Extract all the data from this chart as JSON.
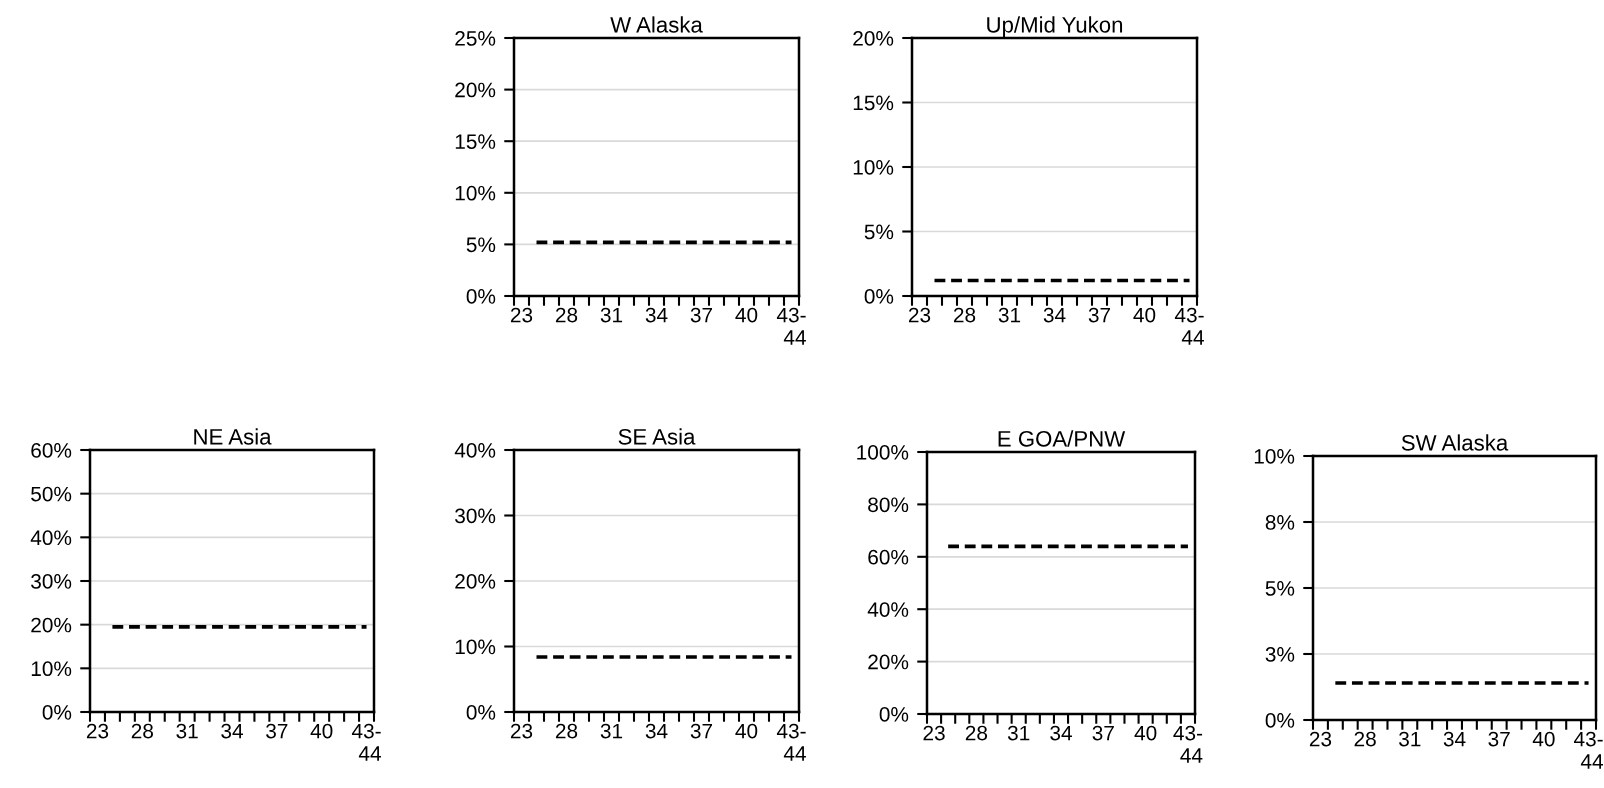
{
  "chart_data": [
    {
      "type": "line",
      "title": "W Alaska",
      "categories": [
        "23",
        null,
        null,
        "28",
        null,
        null,
        "31",
        null,
        null,
        "34",
        null,
        null,
        "37",
        null,
        null,
        "40",
        null,
        null,
        "43-44"
      ],
      "series": [
        {
          "color": "#000000",
          "values": [
            null,
            5.2,
            5.2,
            5.2,
            5.2,
            5.2,
            5.2,
            5.2,
            5.2,
            5.2,
            5.2,
            5.2,
            5.2,
            5.2,
            5.2,
            5.2,
            5.2,
            5.2,
            5.2
          ]
        }
      ],
      "ylim": [
        0,
        25
      ],
      "yticks": [
        {
          "value": 0,
          "label": "0%"
        },
        {
          "value": 5,
          "label": "5%"
        },
        {
          "value": 10,
          "label": "10%"
        },
        {
          "value": 15,
          "label": "15%"
        },
        {
          "value": 20,
          "label": "20%"
        },
        {
          "value": 25,
          "label": "25%"
        }
      ],
      "grid": "y",
      "line_style": "dashed"
    },
    {
      "type": "line",
      "title": "Up/Mid Yukon",
      "categories": [
        "23",
        null,
        null,
        "28",
        null,
        null,
        "31",
        null,
        null,
        "34",
        null,
        null,
        "37",
        null,
        null,
        "40",
        null,
        null,
        "43-44"
      ],
      "series": [
        {
          "color": "#000000",
          "values": [
            null,
            1.2,
            1.2,
            1.2,
            1.2,
            1.2,
            1.2,
            1.2,
            1.2,
            1.2,
            1.2,
            1.2,
            1.2,
            1.2,
            1.2,
            1.2,
            1.2,
            1.2,
            1.2
          ]
        }
      ],
      "ylim": [
        0,
        20
      ],
      "yticks": [
        {
          "value": 0,
          "label": "0%"
        },
        {
          "value": 5,
          "label": "5%"
        },
        {
          "value": 10,
          "label": "10%"
        },
        {
          "value": 15,
          "label": "15%"
        },
        {
          "value": 20,
          "label": "20%"
        }
      ],
      "grid": "y",
      "line_style": "dashed"
    },
    {
      "type": "line",
      "title": "NE Asia",
      "categories": [
        "23",
        null,
        null,
        "28",
        null,
        null,
        "31",
        null,
        null,
        "34",
        null,
        null,
        "37",
        null,
        null,
        "40",
        null,
        null,
        "43-44"
      ],
      "series": [
        {
          "color": "#000000",
          "values": [
            null,
            19.5,
            19.5,
            19.5,
            19.5,
            19.5,
            19.5,
            19.5,
            19.5,
            19.5,
            19.5,
            19.5,
            19.5,
            19.5,
            19.5,
            19.5,
            19.5,
            19.5,
            19.5
          ]
        }
      ],
      "ylim": [
        0,
        60
      ],
      "yticks": [
        {
          "value": 0,
          "label": "0%"
        },
        {
          "value": 10,
          "label": "10%"
        },
        {
          "value": 20,
          "label": "20%"
        },
        {
          "value": 30,
          "label": "30%"
        },
        {
          "value": 40,
          "label": "40%"
        },
        {
          "value": 50,
          "label": "50%"
        },
        {
          "value": 60,
          "label": "60%"
        }
      ],
      "grid": "y",
      "line_style": "dashed"
    },
    {
      "type": "line",
      "title": "SE Asia",
      "categories": [
        "23",
        null,
        null,
        "28",
        null,
        null,
        "31",
        null,
        null,
        "34",
        null,
        null,
        "37",
        null,
        null,
        "40",
        null,
        null,
        "43-44"
      ],
      "series": [
        {
          "color": "#000000",
          "values": [
            null,
            8.4,
            8.4,
            8.4,
            8.4,
            8.4,
            8.4,
            8.4,
            8.4,
            8.4,
            8.4,
            8.4,
            8.4,
            8.4,
            8.4,
            8.4,
            8.4,
            8.4,
            8.4
          ]
        }
      ],
      "ylim": [
        0,
        40
      ],
      "yticks": [
        {
          "value": 0,
          "label": "0%"
        },
        {
          "value": 10,
          "label": "10%"
        },
        {
          "value": 20,
          "label": "20%"
        },
        {
          "value": 30,
          "label": "30%"
        },
        {
          "value": 40,
          "label": "40%"
        }
      ],
      "grid": "y",
      "line_style": "dashed"
    },
    {
      "type": "line",
      "title": "E GOA/PNW",
      "categories": [
        "23",
        null,
        null,
        "28",
        null,
        null,
        "31",
        null,
        null,
        "34",
        null,
        null,
        "37",
        null,
        null,
        "40",
        null,
        null,
        "43-44"
      ],
      "series": [
        {
          "color": "#000000",
          "values": [
            null,
            64,
            64,
            64,
            64,
            64,
            64,
            64,
            64,
            64,
            64,
            64,
            64,
            64,
            64,
            64,
            64,
            64,
            64
          ]
        }
      ],
      "ylim": [
        0,
        100
      ],
      "yticks": [
        {
          "value": 0,
          "label": "0%"
        },
        {
          "value": 20,
          "label": "20%"
        },
        {
          "value": 40,
          "label": "40%"
        },
        {
          "value": 60,
          "label": "60%"
        },
        {
          "value": 80,
          "label": "80%"
        },
        {
          "value": 100,
          "label": "100%"
        }
      ],
      "grid": "y",
      "line_style": "dashed"
    },
    {
      "type": "line",
      "title": "SW Alaska",
      "categories": [
        "23",
        null,
        null,
        "28",
        null,
        null,
        "31",
        null,
        null,
        "34",
        null,
        null,
        "37",
        null,
        null,
        "40",
        null,
        null,
        "43-44"
      ],
      "series": [
        {
          "color": "#000000",
          "values": [
            null,
            1.4,
            1.4,
            1.4,
            1.4,
            1.4,
            1.4,
            1.4,
            1.4,
            1.4,
            1.4,
            1.4,
            1.4,
            1.4,
            1.4,
            1.4,
            1.4,
            1.4,
            1.4
          ]
        }
      ],
      "ylim": [
        0,
        10
      ],
      "yticks": [
        {
          "value": 0,
          "label": "0%"
        },
        {
          "value": 2.5,
          "label": "3%"
        },
        {
          "value": 5,
          "label": "5%"
        },
        {
          "value": 7.5,
          "label": "8%"
        },
        {
          "value": 10,
          "label": "10%"
        }
      ],
      "grid": "y",
      "line_style": "dashed"
    }
  ]
}
